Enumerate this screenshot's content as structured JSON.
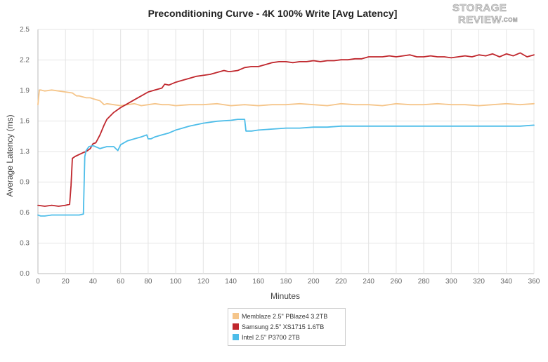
{
  "chart_data": {
    "type": "line",
    "title": "Preconditioning Curve - 4K 100% Write [Avg Latency]",
    "xlabel": "Minutes",
    "ylabel": "Average Latency (ms)",
    "xlim": [
      0,
      360
    ],
    "ylim": [
      0,
      2.5
    ],
    "x_ticks": [
      "0",
      "20",
      "40",
      "60",
      "80",
      "100",
      "120",
      "140",
      "160",
      "180",
      "200",
      "220",
      "240",
      "260",
      "280",
      "300",
      "320",
      "340",
      "360"
    ],
    "y_ticks": [
      "0.0",
      "0.3",
      "0.6",
      "0.9",
      "1.3",
      "1.6",
      "1.9",
      "2.2",
      "2.5"
    ],
    "grid": true,
    "legend_position": "bottom",
    "series": [
      {
        "name": "Memblaze 2.5\" PBlaze4 3.2TB",
        "color": "#f5c58a",
        "x": [
          0,
          1,
          2,
          5,
          10,
          15,
          20,
          25,
          28,
          30,
          35,
          38,
          40,
          45,
          48,
          50,
          55,
          60,
          65,
          70,
          75,
          80,
          85,
          90,
          95,
          100,
          110,
          120,
          130,
          140,
          150,
          160,
          170,
          180,
          190,
          200,
          210,
          220,
          230,
          240,
          250,
          260,
          270,
          280,
          290,
          300,
          310,
          320,
          330,
          340,
          350,
          360
        ],
        "y": [
          1.73,
          1.88,
          1.88,
          1.87,
          1.88,
          1.87,
          1.86,
          1.85,
          1.82,
          1.82,
          1.8,
          1.8,
          1.79,
          1.77,
          1.73,
          1.74,
          1.73,
          1.72,
          1.73,
          1.74,
          1.72,
          1.73,
          1.74,
          1.73,
          1.73,
          1.72,
          1.73,
          1.73,
          1.74,
          1.72,
          1.73,
          1.72,
          1.73,
          1.73,
          1.74,
          1.73,
          1.72,
          1.74,
          1.73,
          1.73,
          1.72,
          1.74,
          1.73,
          1.73,
          1.74,
          1.73,
          1.73,
          1.72,
          1.73,
          1.74,
          1.73,
          1.74
        ]
      },
      {
        "name": "Samsung 2.5\" XS1715 1.6TB",
        "color": "#c0272d",
        "x": [
          0,
          5,
          10,
          15,
          20,
          23,
          24,
          25,
          27,
          30,
          33,
          35,
          38,
          40,
          42,
          45,
          48,
          50,
          55,
          60,
          65,
          70,
          75,
          80,
          85,
          90,
          92,
          95,
          100,
          105,
          110,
          115,
          120,
          125,
          130,
          135,
          138,
          140,
          145,
          150,
          155,
          160,
          165,
          170,
          175,
          180,
          185,
          190,
          195,
          200,
          205,
          210,
          215,
          220,
          225,
          230,
          235,
          240,
          245,
          250,
          255,
          260,
          265,
          270,
          275,
          280,
          285,
          290,
          295,
          300,
          305,
          310,
          315,
          320,
          325,
          330,
          335,
          340,
          345,
          350,
          355,
          360
        ],
        "y": [
          0.7,
          0.69,
          0.7,
          0.69,
          0.7,
          0.71,
          0.9,
          1.18,
          1.2,
          1.22,
          1.24,
          1.25,
          1.28,
          1.33,
          1.34,
          1.42,
          1.52,
          1.58,
          1.65,
          1.7,
          1.74,
          1.78,
          1.82,
          1.86,
          1.88,
          1.9,
          1.94,
          1.93,
          1.96,
          1.98,
          2.0,
          2.02,
          2.03,
          2.04,
          2.06,
          2.08,
          2.07,
          2.07,
          2.08,
          2.11,
          2.12,
          2.12,
          2.14,
          2.16,
          2.17,
          2.17,
          2.16,
          2.17,
          2.17,
          2.18,
          2.17,
          2.18,
          2.18,
          2.19,
          2.19,
          2.2,
          2.2,
          2.22,
          2.22,
          2.22,
          2.23,
          2.22,
          2.23,
          2.24,
          2.22,
          2.22,
          2.23,
          2.22,
          2.22,
          2.21,
          2.22,
          2.23,
          2.22,
          2.24,
          2.23,
          2.25,
          2.22,
          2.25,
          2.23,
          2.26,
          2.22,
          2.24
        ]
      },
      {
        "name": "Intel 2.5\" P3700 2TB",
        "color": "#4dbde9",
        "x": [
          0,
          2,
          5,
          10,
          15,
          20,
          25,
          30,
          33,
          34,
          35,
          37,
          40,
          45,
          50,
          55,
          58,
          60,
          65,
          70,
          75,
          79,
          80,
          82,
          85,
          90,
          95,
          100,
          110,
          120,
          130,
          140,
          145,
          150,
          151,
          155,
          160,
          170,
          180,
          190,
          200,
          210,
          220,
          230,
          240,
          250,
          260,
          270,
          280,
          290,
          300,
          310,
          320,
          330,
          340,
          350,
          360
        ],
        "y": [
          0.6,
          0.59,
          0.59,
          0.6,
          0.6,
          0.6,
          0.6,
          0.6,
          0.61,
          1.2,
          1.26,
          1.3,
          1.31,
          1.28,
          1.3,
          1.3,
          1.26,
          1.32,
          1.36,
          1.38,
          1.4,
          1.42,
          1.38,
          1.38,
          1.4,
          1.42,
          1.44,
          1.47,
          1.51,
          1.54,
          1.56,
          1.57,
          1.58,
          1.58,
          1.46,
          1.46,
          1.47,
          1.48,
          1.49,
          1.49,
          1.5,
          1.5,
          1.51,
          1.51,
          1.51,
          1.51,
          1.51,
          1.51,
          1.51,
          1.51,
          1.51,
          1.51,
          1.51,
          1.51,
          1.51,
          1.51,
          1.52
        ]
      }
    ]
  },
  "logo": {
    "line1": "STORAGE",
    "line2": "REVIEW",
    "suffix": ".COM"
  }
}
